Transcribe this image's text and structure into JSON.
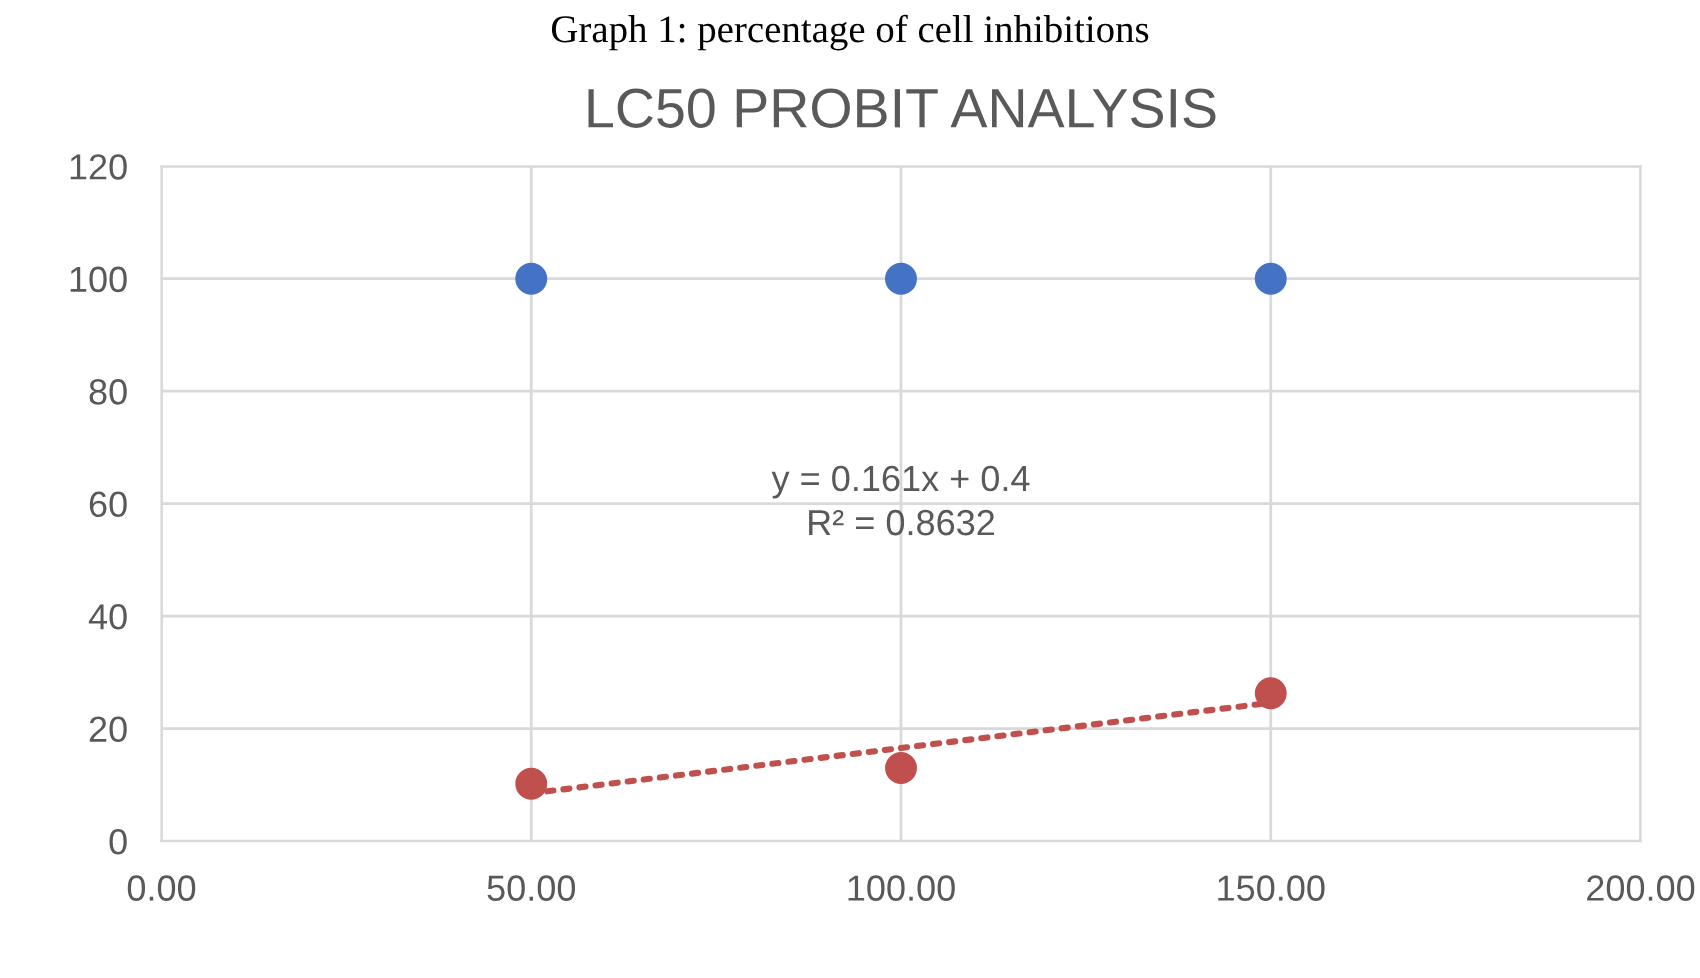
{
  "chart_data": {
    "type": "scatter",
    "title": "LC50 PROBIT ANALYSIS",
    "annotations": [
      "Graph 1: percentage of cell inhibitions",
      "y = 0.161x + 0.4\nR² = 0.8632"
    ],
    "x": [
      50,
      100,
      150
    ],
    "series": [
      {
        "color": "#4472c4",
        "values": [
          100,
          100,
          100
        ]
      },
      {
        "color": "#c0504d",
        "values": [
          10.2,
          13.0,
          26.3
        ]
      },
      {
        "type": "line",
        "color": "#c0504d",
        "x": [
          50,
          150
        ],
        "values": [
          8.5,
          24.6
        ],
        "line_style": "dotted",
        "marker": "none"
      }
    ],
    "xlim": [
      0,
      200
    ],
    "xticks": [
      {
        "value": 0,
        "label": "0.00"
      },
      {
        "value": 50,
        "label": "50.00"
      },
      {
        "value": 100,
        "label": "100.00"
      },
      {
        "value": 150,
        "label": "150.00"
      },
      {
        "value": 200,
        "label": "200.00"
      }
    ],
    "ylim": [
      0,
      120
    ],
    "yticks": [
      0,
      20,
      40,
      60,
      80,
      100,
      120
    ],
    "grid": true,
    "marker": "circle"
  }
}
